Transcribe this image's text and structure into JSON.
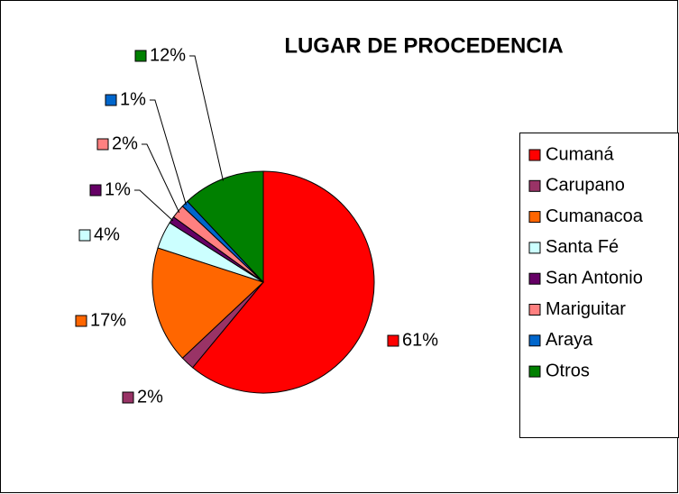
{
  "chart_data": {
    "type": "pie",
    "title": "LUGAR DE PROCEDENCIA",
    "categories": [
      "Cumaná",
      "Carupano",
      "Cumanacoa",
      "Santa Fé",
      "San Antonio",
      "Mariguitar",
      "Araya",
      "Otros"
    ],
    "values": [
      61,
      2,
      17,
      4,
      1,
      2,
      1,
      12
    ],
    "value_labels": [
      "61%",
      "2%",
      "17%",
      "4%",
      "1%",
      "2%",
      "1%",
      "12%"
    ],
    "colors": [
      "#ff0000",
      "#993366",
      "#ff6600",
      "#ccffff",
      "#660066",
      "#ff8080",
      "#0066cc",
      "#008000"
    ],
    "legend": "right"
  }
}
